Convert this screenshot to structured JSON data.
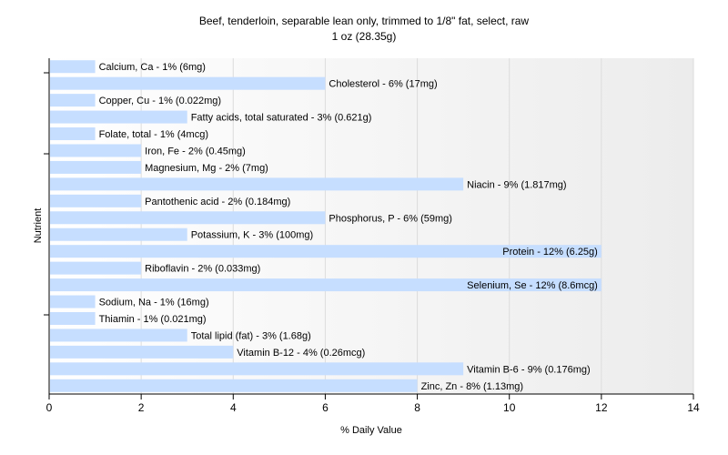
{
  "chart_data": {
    "type": "bar",
    "orientation": "horizontal",
    "title": "Beef, tenderloin, separable lean only, trimmed to 1/8\" fat, select, raw",
    "subtitle": "1 oz (28.35g)",
    "xlabel": "% Daily Value",
    "ylabel": "Nutrient",
    "xlim": [
      0,
      14
    ],
    "xticks": [
      "0",
      "2",
      "4",
      "6",
      "8",
      "10",
      "12",
      "14"
    ],
    "grid": true,
    "bar_color": "#c6deff",
    "categories": [
      "Calcium, Ca",
      "Cholesterol",
      "Copper, Cu",
      "Fatty acids, total saturated",
      "Folate, total",
      "Iron, Fe",
      "Magnesium, Mg",
      "Niacin",
      "Pantothenic acid",
      "Phosphorus, P",
      "Potassium, K",
      "Protein",
      "Riboflavin",
      "Selenium, Se",
      "Sodium, Na",
      "Thiamin",
      "Total lipid (fat)",
      "Vitamin B-12",
      "Vitamin B-6",
      "Zinc, Zn"
    ],
    "values": [
      1,
      6,
      1,
      3,
      1,
      2,
      2,
      9,
      2,
      6,
      3,
      12,
      2,
      12,
      1,
      1,
      3,
      4,
      9,
      8
    ],
    "labels": [
      "Calcium, Ca - 1% (6mg)",
      "Cholesterol - 6% (17mg)",
      "Copper, Cu - 1% (0.022mg)",
      "Fatty acids, total saturated - 3% (0.621g)",
      "Folate, total - 1% (4mcg)",
      "Iron, Fe - 2% (0.45mg)",
      "Magnesium, Mg - 2% (7mg)",
      "Niacin - 9% (1.817mg)",
      "Pantothenic acid - 2% (0.184mg)",
      "Phosphorus, P - 6% (59mg)",
      "Potassium, K - 3% (100mg)",
      "Protein - 12% (6.25g)",
      "Riboflavin - 2% (0.033mg)",
      "Selenium, Se - 12% (8.6mcg)",
      "Sodium, Na - 1% (16mg)",
      "Thiamin - 1% (0.021mg)",
      "Total lipid (fat) - 3% (1.68g)",
      "Vitamin B-12 - 4% (0.26mcg)",
      "Vitamin B-6 - 9% (0.176mg)",
      "Zinc, Zn - 8% (1.13mg)"
    ]
  }
}
